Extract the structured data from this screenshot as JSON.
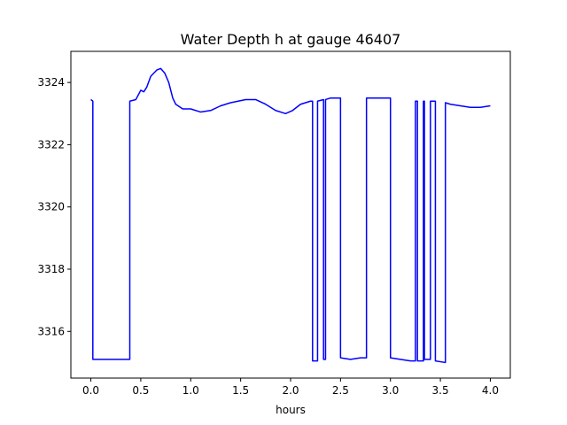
{
  "chart_data": {
    "type": "line",
    "title": "Water Depth h at gauge 46407",
    "xlabel": "hours",
    "ylabel": "",
    "xlim": [
      -0.2,
      4.2
    ],
    "ylim": [
      3314.5,
      3325.0
    ],
    "xticks": [
      0.0,
      0.5,
      1.0,
      1.5,
      2.0,
      2.5,
      3.0,
      3.5,
      4.0
    ],
    "xtick_labels": [
      "0.0",
      "0.5",
      "1.0",
      "1.5",
      "2.0",
      "2.5",
      "3.0",
      "3.5",
      "4.0"
    ],
    "yticks": [
      3316,
      3318,
      3320,
      3322,
      3324
    ],
    "ytick_labels": [
      "3316",
      "3318",
      "3320",
      "3322",
      "3324"
    ],
    "grid": false,
    "series": [
      {
        "color": "#0000ff",
        "x": [
          0.0,
          0.02,
          0.02,
          0.25,
          0.39,
          0.39,
          0.45,
          0.5,
          0.53,
          0.56,
          0.6,
          0.66,
          0.7,
          0.74,
          0.78,
          0.82,
          0.85,
          0.92,
          1.0,
          1.1,
          1.2,
          1.3,
          1.4,
          1.55,
          1.65,
          1.75,
          1.85,
          1.95,
          2.02,
          2.1,
          2.2,
          2.22,
          2.22,
          2.27,
          2.27,
          2.33,
          2.33,
          2.35,
          2.35,
          2.4,
          2.45,
          2.5,
          2.5,
          2.6,
          2.7,
          2.76,
          2.76,
          2.85,
          2.95,
          3.0,
          3.0,
          3.1,
          3.2,
          3.25,
          3.25,
          3.27,
          3.27,
          3.33,
          3.33,
          3.34,
          3.34,
          3.4,
          3.4,
          3.45,
          3.45,
          3.55,
          3.55,
          3.6,
          3.7,
          3.8,
          3.9,
          4.0
        ],
        "y": [
          3323.45,
          3323.4,
          3315.1,
          3315.1,
          3315.1,
          3323.4,
          3323.45,
          3323.75,
          3323.7,
          3323.85,
          3324.2,
          3324.4,
          3324.45,
          3324.3,
          3324.0,
          3323.5,
          3323.3,
          3323.15,
          3323.15,
          3323.05,
          3323.1,
          3323.25,
          3323.35,
          3323.45,
          3323.45,
          3323.3,
          3323.1,
          3323.0,
          3323.1,
          3323.3,
          3323.4,
          3323.4,
          3315.05,
          3315.05,
          3323.4,
          3323.45,
          3315.1,
          3315.1,
          3323.45,
          3323.5,
          3323.5,
          3323.5,
          3315.15,
          3315.1,
          3315.15,
          3315.15,
          3323.5,
          3323.5,
          3323.5,
          3323.5,
          3315.15,
          3315.1,
          3315.05,
          3315.05,
          3323.4,
          3323.4,
          3315.05,
          3315.05,
          3323.4,
          3323.4,
          3315.1,
          3315.1,
          3323.4,
          3323.4,
          3315.05,
          3315.0,
          3323.35,
          3323.3,
          3323.25,
          3323.2,
          3323.2,
          3323.25
        ]
      }
    ]
  }
}
